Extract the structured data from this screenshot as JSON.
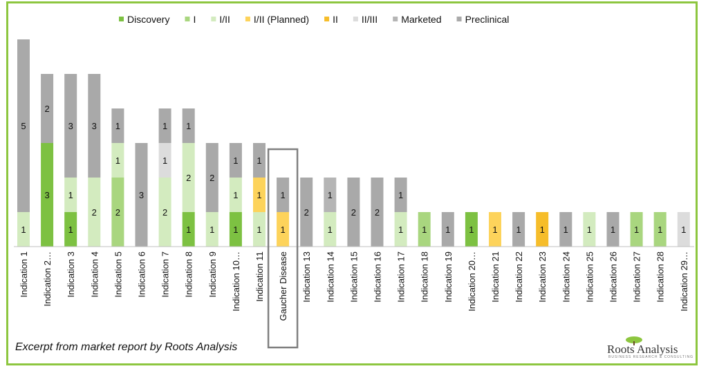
{
  "colors": {
    "Discovery": "#7dc142",
    "I": "#a9d67f",
    "I/II": "#d3ebbf",
    "I/II (Planned)": "#fdd35b",
    "II": "#f6bd2a",
    "II/III": "#dcdcdc",
    "Marketed": "#b5b5b5",
    "Preclinical": "#a9a9a9",
    "border": "#8dc63f",
    "highlight_box": "#7f7f7f"
  },
  "chart_data": {
    "type": "bar",
    "stacked": true,
    "categories": [
      "Indication 1",
      "Indication 2…",
      "Indication 3",
      "Indication 4",
      "Indication 5",
      "Indication 6",
      "Indication 7",
      "Indication 8",
      "Indication 9",
      "Indication 10…",
      "Indication 11",
      "Gaucher Disease",
      "Indication 13",
      "Indication 14",
      "Indication 15",
      "Indication 16",
      "Indication 17",
      "Indication 18",
      "Indication 19",
      "Indication 20…",
      "Indication 21",
      "Indication 22",
      "Indication 23",
      "Indication 24",
      "Indication 25",
      "Indication 26",
      "Indication 27",
      "Indication 28",
      "Indication 29…"
    ],
    "series": [
      {
        "name": "Discovery",
        "values": [
          0,
          3,
          1,
          0,
          0,
          0,
          0,
          1,
          0,
          1,
          0,
          0,
          0,
          0,
          0,
          0,
          0,
          0,
          0,
          1,
          0,
          0,
          0,
          0,
          0,
          0,
          0,
          0,
          0
        ]
      },
      {
        "name": "I",
        "values": [
          0,
          0,
          0,
          0,
          2,
          0,
          0,
          0,
          0,
          0,
          0,
          0,
          0,
          0,
          0,
          0,
          0,
          1,
          0,
          0,
          0,
          0,
          0,
          0,
          0,
          0,
          1,
          1,
          0
        ]
      },
      {
        "name": "I/II",
        "values": [
          1,
          0,
          1,
          2,
          1,
          0,
          2,
          2,
          1,
          1,
          1,
          0,
          0,
          1,
          0,
          0,
          1,
          0,
          0,
          0,
          0,
          0,
          0,
          0,
          1,
          0,
          0,
          0,
          0
        ]
      },
      {
        "name": "I/II (Planned)",
        "values": [
          0,
          0,
          0,
          0,
          0,
          0,
          0,
          0,
          0,
          0,
          1,
          1,
          0,
          0,
          0,
          0,
          0,
          0,
          0,
          0,
          1,
          0,
          0,
          0,
          0,
          0,
          0,
          0,
          0
        ]
      },
      {
        "name": "II",
        "values": [
          0,
          0,
          0,
          0,
          0,
          0,
          0,
          0,
          0,
          0,
          0,
          0,
          0,
          0,
          0,
          0,
          0,
          0,
          0,
          0,
          0,
          0,
          1,
          0,
          0,
          0,
          0,
          0,
          0
        ]
      },
      {
        "name": "II/III",
        "values": [
          0,
          0,
          0,
          0,
          0,
          0,
          1,
          0,
          0,
          0,
          0,
          0,
          0,
          0,
          0,
          0,
          0,
          0,
          0,
          0,
          0,
          0,
          0,
          0,
          0,
          0,
          0,
          0,
          1
        ]
      },
      {
        "name": "Marketed",
        "values": [
          0,
          0,
          0,
          0,
          0,
          0,
          0,
          0,
          0,
          0,
          0,
          0,
          0,
          1,
          0,
          0,
          0,
          0,
          0,
          0,
          0,
          0,
          0,
          0,
          0,
          0,
          0,
          0,
          0
        ]
      },
      {
        "name": "Preclinical",
        "values": [
          5,
          2,
          3,
          3,
          1,
          3,
          1,
          1,
          2,
          1,
          1,
          1,
          2,
          0,
          2,
          2,
          1,
          0,
          1,
          0,
          0,
          1,
          0,
          1,
          0,
          1,
          0,
          0,
          0
        ]
      }
    ],
    "ylim": [
      0,
      6
    ],
    "legend_position": "top",
    "highlighted_category": "Gaucher Disease",
    "grid": false
  },
  "footer": {
    "note": "Excerpt from market report by Roots Analysis"
  },
  "logo": {
    "name": "Roots Analysis",
    "tagline": "BUSINESS RESEARCH & CONSULTING"
  }
}
